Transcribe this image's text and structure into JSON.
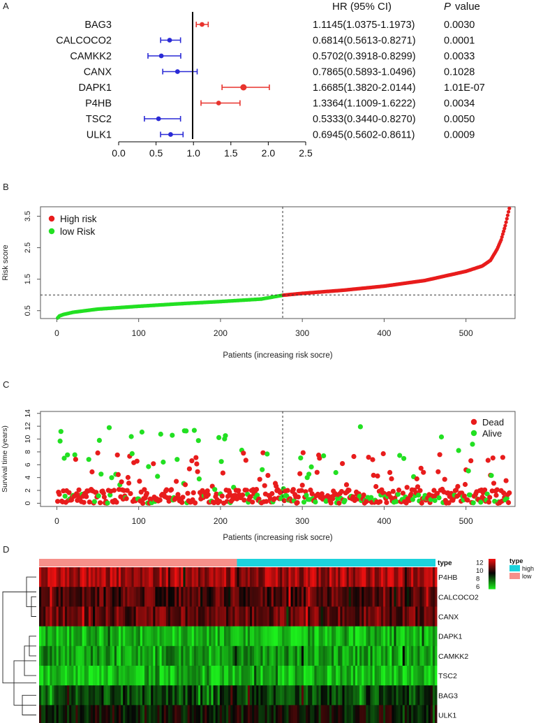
{
  "panel_labels": [
    "A",
    "B",
    "C",
    "D"
  ],
  "chart_data": [
    {
      "panel": "A",
      "type": "forest",
      "headers": {
        "hr": "HR (95% CI)",
        "p_italic": "P",
        "p_rest": "value"
      },
      "xlim": [
        0.0,
        2.5
      ],
      "xticks": [
        "0.0",
        "0.5",
        "1.0",
        "1.5",
        "2.0",
        "2.5"
      ],
      "reference_line": 1.0,
      "colors": {
        "hr_above_1": "#e8332d",
        "hr_below_1": "#2a2ad6"
      },
      "rows": [
        {
          "gene": "BAG3",
          "hr": 1.1145,
          "lo": 1.0375,
          "hi": 1.1973,
          "ci_text": "1.1145(1.0375-1.1973)",
          "p": "0.0030"
        },
        {
          "gene": "CALCOCO2",
          "hr": 0.6814,
          "lo": 0.5613,
          "hi": 0.8271,
          "ci_text": "0.6814(0.5613-0.8271)",
          "p": "0.0001"
        },
        {
          "gene": "CAMKK2",
          "hr": 0.5702,
          "lo": 0.3918,
          "hi": 0.8299,
          "ci_text": "0.5702(0.3918-0.8299)",
          "p": "0.0033"
        },
        {
          "gene": "CANX",
          "hr": 0.7865,
          "lo": 0.5893,
          "hi": 1.0496,
          "ci_text": "0.7865(0.5893-1.0496)",
          "p": "0.1028"
        },
        {
          "gene": "DAPK1",
          "hr": 1.6685,
          "lo": 1.382,
          "hi": 2.0144,
          "ci_text": "1.6685(1.3820-2.0144)",
          "p": "1.01E-07"
        },
        {
          "gene": "P4HB",
          "hr": 1.3364,
          "lo": 1.1009,
          "hi": 1.6222,
          "ci_text": "1.3364(1.1009-1.6222)",
          "p": "0.0034"
        },
        {
          "gene": "TSC2",
          "hr": 0.5333,
          "lo": 0.344,
          "hi": 0.827,
          "ci_text": "0.5333(0.3440-0.8270)",
          "p": "0.0050"
        },
        {
          "gene": "ULK1",
          "hr": 0.6945,
          "lo": 0.5602,
          "hi": 0.8611,
          "ci_text": "0.6945(0.5602-0.8611)",
          "p": "0.0009"
        }
      ]
    },
    {
      "panel": "B",
      "type": "scatter",
      "xlabel": "Patients (increasing risk socre)",
      "ylabel": "Risk score",
      "xlim": [
        -20,
        560
      ],
      "ylim": [
        0.25,
        3.8
      ],
      "xticks": [
        0,
        100,
        200,
        300,
        400,
        500
      ],
      "yticks": [
        0.5,
        1.5,
        2.5,
        3.5
      ],
      "n_patients": 553,
      "cutoff_index": 276,
      "cutoff_value": 1.0,
      "legend_position": "top-left",
      "series": [
        {
          "name": "High risk",
          "color": "#e81c1c"
        },
        {
          "name": "low Risk",
          "color": "#22e022"
        }
      ],
      "curve_anchors": [
        [
          1,
          0.27
        ],
        [
          3,
          0.33
        ],
        [
          8,
          0.38
        ],
        [
          20,
          0.45
        ],
        [
          50,
          0.55
        ],
        [
          100,
          0.64
        ],
        [
          150,
          0.72
        ],
        [
          200,
          0.79
        ],
        [
          250,
          0.87
        ],
        [
          276,
          0.99
        ],
        [
          300,
          1.05
        ],
        [
          350,
          1.15
        ],
        [
          400,
          1.28
        ],
        [
          450,
          1.46
        ],
        [
          500,
          1.75
        ],
        [
          520,
          1.92
        ],
        [
          530,
          2.1
        ],
        [
          538,
          2.45
        ],
        [
          543,
          2.75
        ],
        [
          548,
          3.2
        ],
        [
          553,
          3.75
        ]
      ]
    },
    {
      "panel": "C",
      "type": "scatter",
      "xlabel": "Patients (increasing risk socre)",
      "ylabel": "Survival time (years)",
      "xlim": [
        -20,
        560
      ],
      "ylim": [
        -0.5,
        14.3
      ],
      "xticks": [
        0,
        100,
        200,
        300,
        400,
        500
      ],
      "yticks": [
        0,
        2,
        4,
        6,
        8,
        10,
        12,
        14
      ],
      "cutoff_index": 276,
      "legend_position": "top-right",
      "series": [
        {
          "name": "Dead",
          "color": "#e81c1c"
        },
        {
          "name": "Alive",
          "color": "#22e022"
        }
      ]
    },
    {
      "panel": "D",
      "type": "heatmap",
      "rows": [
        "P4HB",
        "CALCOCO2",
        "CANX",
        "DAPK1",
        "CAMKK2",
        "TSC2",
        "BAG3",
        "ULK1"
      ],
      "row_base_values": [
        11.8,
        10.6,
        10.9,
        6.6,
        7.0,
        6.4,
        8.4,
        9.4
      ],
      "n_columns": 553,
      "type_row_label": "type",
      "type_groups": [
        {
          "name": "high",
          "color": "#1cd2dc"
        },
        {
          "name": "low",
          "color": "#f6908a"
        }
      ],
      "low_group_count": 276,
      "color_scale": {
        "min": 5.5,
        "mid": 9.5,
        "max": 13,
        "ticks": [
          6,
          8,
          10,
          12
        ],
        "low_color": "#1cf01c",
        "mid_color": "#050505",
        "high_color": "#ee1010"
      },
      "legend_title": "type"
    }
  ]
}
